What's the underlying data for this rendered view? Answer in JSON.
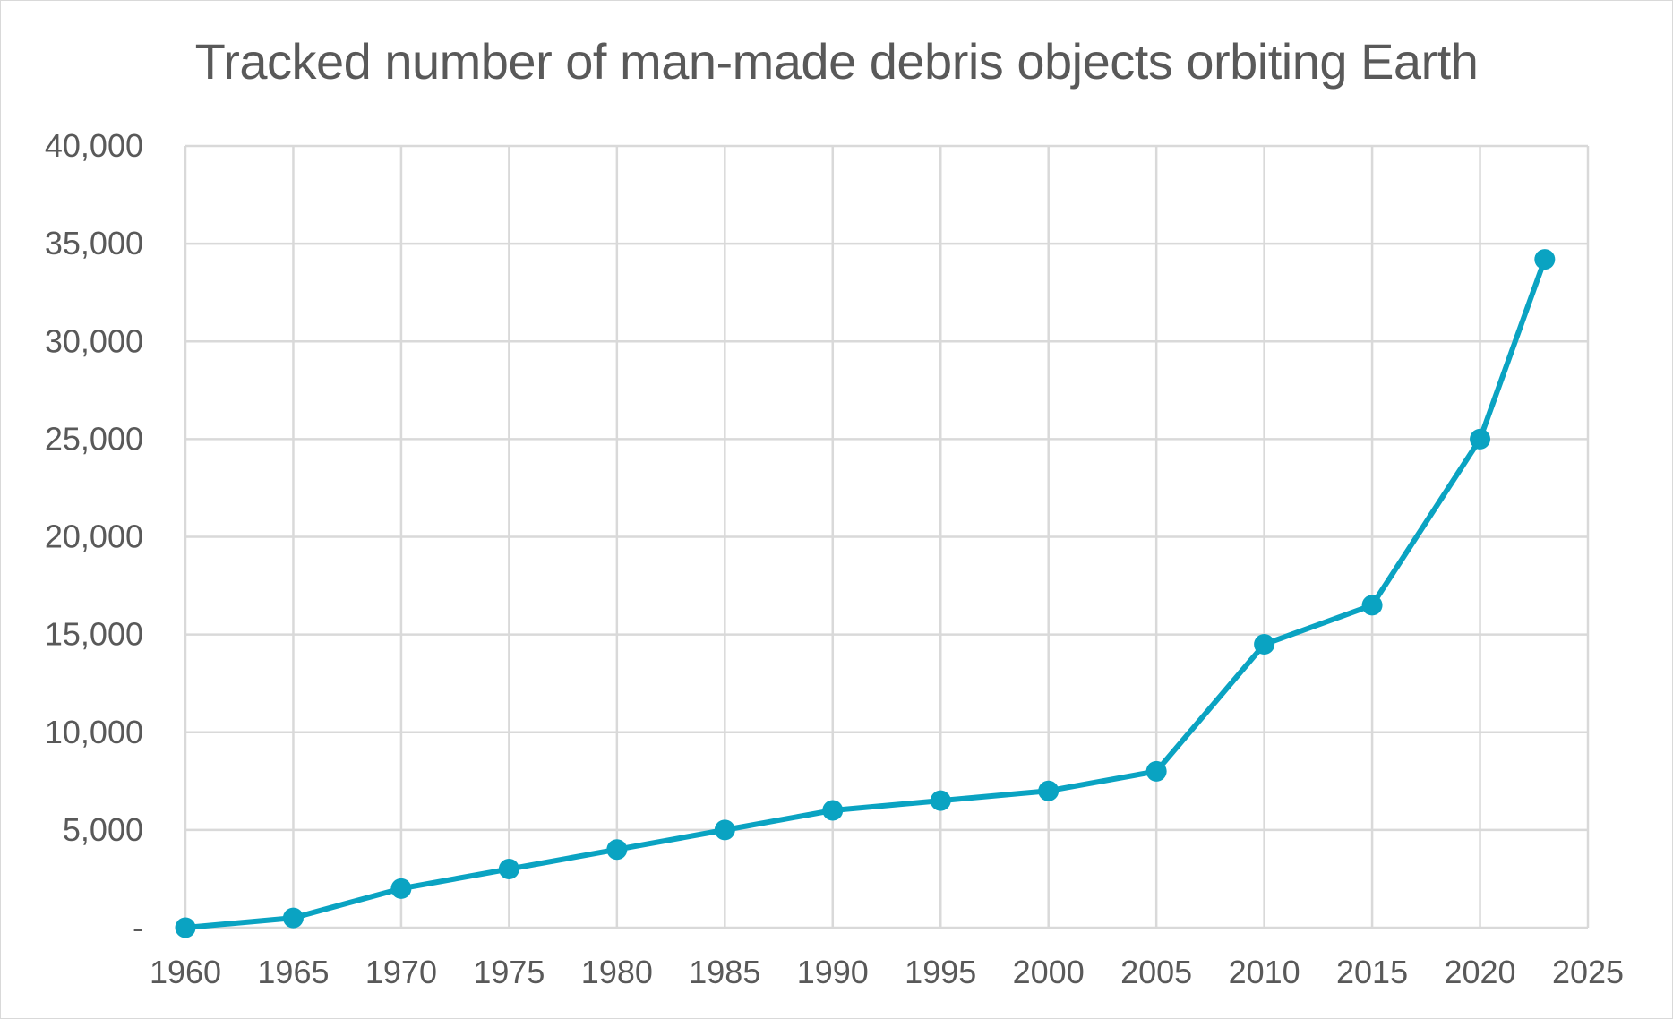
{
  "chart_data": {
    "type": "line",
    "title": "Tracked number of man-made debris objects orbiting Earth",
    "xlabel": "",
    "ylabel": "",
    "xlim": [
      1960,
      2025
    ],
    "ylim": [
      0,
      40000
    ],
    "x_ticks": [
      "1960",
      "1965",
      "1970",
      "1975",
      "1980",
      "1985",
      "1990",
      "1995",
      "2000",
      "2005",
      "2010",
      "2015",
      "2020",
      "2025"
    ],
    "x_tick_values": [
      1960,
      1965,
      1970,
      1975,
      1980,
      1985,
      1990,
      1995,
      2000,
      2005,
      2010,
      2015,
      2020,
      2025
    ],
    "y_ticks": [
      "-",
      "5,000",
      "10,000",
      "15,000",
      "20,000",
      "25,000",
      "30,000",
      "35,000",
      "40,000"
    ],
    "y_tick_values": [
      0,
      5000,
      10000,
      15000,
      20000,
      25000,
      30000,
      35000,
      40000
    ],
    "grid": true,
    "legend": "none",
    "series": [
      {
        "color": "#0aa3c2",
        "x": [
          1960,
          1965,
          1970,
          1975,
          1980,
          1985,
          1990,
          1995,
          2000,
          2005,
          2010,
          2015,
          2020,
          2023
        ],
        "y": [
          0,
          500,
          2000,
          3000,
          4000,
          5000,
          6000,
          6500,
          7000,
          8000,
          14500,
          16500,
          25000,
          34200
        ]
      }
    ]
  }
}
